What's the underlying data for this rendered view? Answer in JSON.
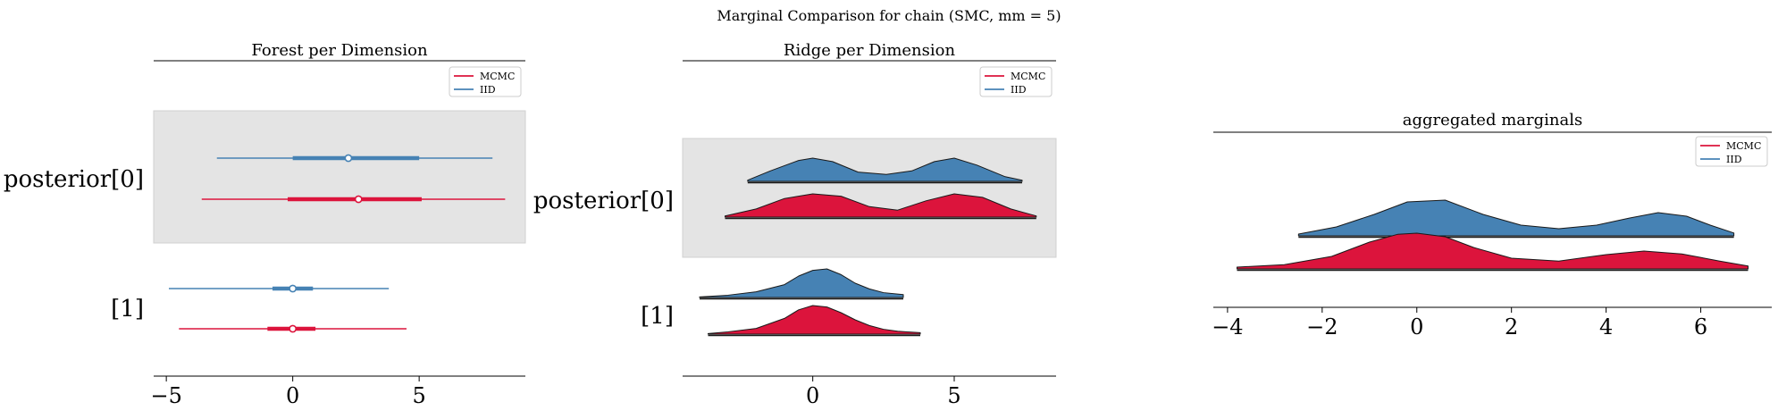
{
  "suptitle": "Marginal Comparison for chain (SMC, mm = 5)",
  "colors": {
    "mcmc": "#DC143C",
    "iid": "#4682B4",
    "band": "#e4e4e4",
    "axis": "#000000"
  },
  "legend": {
    "mcmc": "MCMC",
    "iid": "IID"
  },
  "chart_data": [
    {
      "type": "forest",
      "title": "Forest per Dimension",
      "xlim": [
        -5.5,
        9.2
      ],
      "xticks": [
        -5,
        0,
        5
      ],
      "rows": [
        {
          "label": "posterior[0]",
          "iid": {
            "hdi94": [
              -3.0,
              7.9
            ],
            "hdi50": [
              0.0,
              5.0
            ],
            "median": 2.2
          },
          "mcmc": {
            "hdi94": [
              -3.6,
              8.4
            ],
            "hdi50": [
              -0.2,
              5.1
            ],
            "median": 2.6
          }
        },
        {
          "label": "[1]",
          "iid": {
            "hdi94": [
              -4.9,
              3.8
            ],
            "hdi50": [
              -0.8,
              0.8
            ],
            "median": 0.0
          },
          "mcmc": {
            "hdi94": [
              -4.5,
              4.5
            ],
            "hdi50": [
              -1.0,
              0.9
            ],
            "median": 0.0
          }
        }
      ]
    },
    {
      "type": "ridge",
      "title": "Ridge per Dimension",
      "xlim": [
        -4.6,
        8.6
      ],
      "xticks": [
        0,
        5
      ],
      "rows": [
        {
          "label": "posterior[0]",
          "iid": {
            "x": [
              -2.3,
              -1.5,
              -0.5,
              0.0,
              0.7,
              1.6,
              2.6,
              3.5,
              4.3,
              5.0,
              5.8,
              6.8,
              7.4
            ],
            "density": [
              0.05,
              0.45,
              0.9,
              1.0,
              0.85,
              0.4,
              0.3,
              0.45,
              0.85,
              1.0,
              0.7,
              0.2,
              0.05
            ]
          },
          "mcmc": {
            "x": [
              -3.1,
              -2.0,
              -1.0,
              0.0,
              1.0,
              2.0,
              3.0,
              4.0,
              5.0,
              6.0,
              7.0,
              7.9
            ],
            "density": [
              0.05,
              0.35,
              0.8,
              1.0,
              0.9,
              0.45,
              0.3,
              0.7,
              1.0,
              0.85,
              0.35,
              0.05
            ]
          }
        },
        {
          "label": "[1]",
          "iid": {
            "x": [
              -4.0,
              -3.0,
              -2.0,
              -1.0,
              -0.5,
              0.0,
              0.5,
              1.0,
              1.5,
              2.0,
              2.5,
              3.2
            ],
            "density": [
              0.02,
              0.08,
              0.2,
              0.45,
              0.75,
              0.95,
              1.0,
              0.8,
              0.5,
              0.3,
              0.17,
              0.1
            ]
          },
          "mcmc": {
            "x": [
              -3.7,
              -3.0,
              -2.0,
              -1.0,
              -0.5,
              0.0,
              0.5,
              1.0,
              1.5,
              2.0,
              2.5,
              3.0,
              3.8
            ],
            "density": [
              0.02,
              0.08,
              0.2,
              0.55,
              0.85,
              1.0,
              0.95,
              0.75,
              0.5,
              0.3,
              0.17,
              0.1,
              0.05
            ]
          }
        }
      ]
    },
    {
      "type": "ridge",
      "title": "aggregated marginals",
      "xlim": [
        -4.3,
        7.5
      ],
      "xticks": [
        -4,
        -2,
        0,
        2,
        4,
        6
      ],
      "rows": [
        {
          "label": "",
          "iid": {
            "x": [
              -2.5,
              -1.7,
              -0.9,
              -0.2,
              0.6,
              1.4,
              2.2,
              3.0,
              3.8,
              4.5,
              5.1,
              5.7,
              6.2,
              6.7
            ],
            "density": [
              0.05,
              0.25,
              0.6,
              0.95,
              1.0,
              0.6,
              0.3,
              0.2,
              0.3,
              0.5,
              0.65,
              0.55,
              0.3,
              0.08
            ]
          },
          "mcmc": {
            "x": [
              -3.8,
              -2.8,
              -1.8,
              -1.0,
              -0.4,
              0.0,
              0.6,
              1.2,
              2.0,
              3.0,
              4.0,
              4.8,
              5.6,
              6.4,
              7.0
            ],
            "density": [
              0.05,
              0.12,
              0.35,
              0.75,
              0.97,
              1.0,
              0.9,
              0.6,
              0.3,
              0.22,
              0.4,
              0.5,
              0.42,
              0.22,
              0.08
            ]
          }
        }
      ]
    }
  ]
}
